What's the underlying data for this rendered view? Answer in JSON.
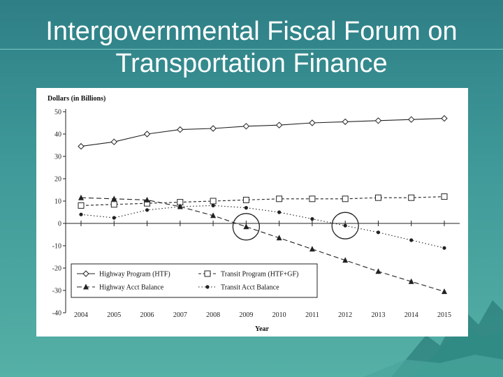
{
  "slide": {
    "title_line1": "Intergovernmental Fiscal Forum on",
    "title_line2": "Transportation Finance"
  },
  "colors": {
    "background_top": "#2e7f86",
    "background_bottom": "#55b0a6",
    "title_text": "#ffffff",
    "series_ink": "#222222"
  },
  "chart_data": {
    "type": "line",
    "ylabel": "Dollars (in Billions)",
    "xlabel": "Year",
    "x": [
      2004,
      2005,
      2006,
      2007,
      2008,
      2009,
      2010,
      2011,
      2012,
      2013,
      2014,
      2015
    ],
    "ylim": [
      -40,
      50
    ],
    "yticks": [
      50,
      40,
      30,
      20,
      10,
      0,
      -10,
      -20,
      -30,
      -40
    ],
    "grid": false,
    "legend_position": "bottom-left",
    "series": [
      {
        "name": "Highway Program (HTF)",
        "marker": "diamond-open",
        "line": "solid",
        "values": [
          34.5,
          36.5,
          40,
          42,
          42.5,
          43.5,
          44,
          45,
          45.5,
          46,
          46.5,
          47
        ]
      },
      {
        "name": "Transit Program (HTF+GF)",
        "marker": "square-open",
        "line": "dashed",
        "values": [
          8,
          8.5,
          9,
          9.5,
          10,
          10.5,
          11,
          11,
          11,
          11.5,
          11.5,
          12
        ]
      },
      {
        "name": "Highway Acct Balance",
        "marker": "triangle-filled",
        "line": "long-dash",
        "values": [
          11.5,
          11,
          10.5,
          7.5,
          3.5,
          -1.5,
          -6.5,
          -11.5,
          -16.5,
          -21.5,
          -26,
          -30.5
        ]
      },
      {
        "name": "Transit Acct Balance",
        "marker": "circle-filled",
        "line": "dotted",
        "values": [
          4,
          2.5,
          6,
          7.5,
          8,
          7,
          5,
          2,
          -1,
          -4,
          -7.5,
          -11
        ]
      }
    ],
    "annotations": [
      {
        "shape": "circle",
        "x": 2009,
        "y": -1.5,
        "note": "highlight"
      },
      {
        "shape": "circle",
        "x": 2012,
        "y": -1,
        "note": "highlight"
      }
    ]
  }
}
